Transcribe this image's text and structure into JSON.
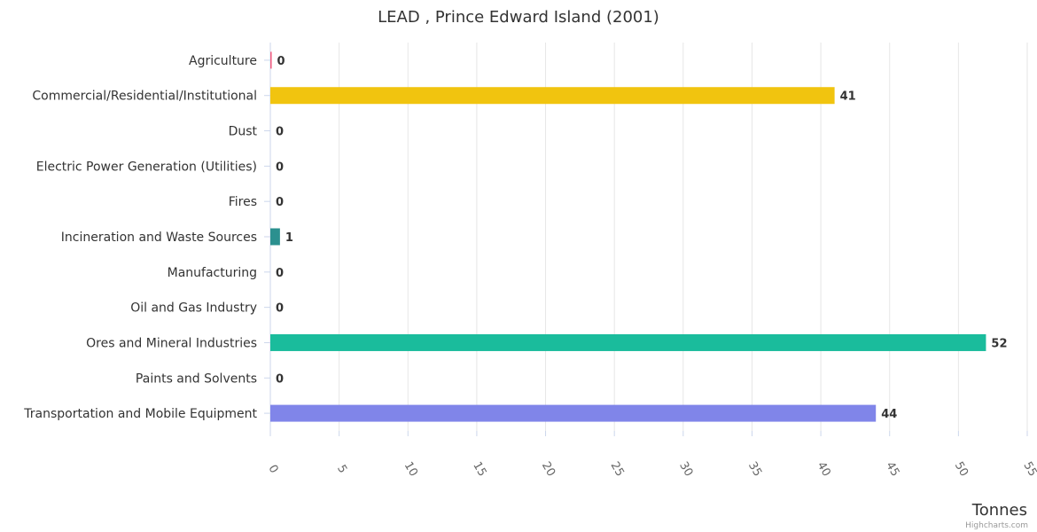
{
  "chart_data": {
    "type": "bar",
    "orientation": "horizontal",
    "title": "LEAD , Prince Edward Island (2001)",
    "categories": [
      "Agriculture",
      "Commercial/Residential/Institutional",
      "Dust",
      "Electric Power Generation (Utilities)",
      "Fires",
      "Incineration and Waste Sources",
      "Manufacturing",
      "Oil and Gas Industry",
      "Ores and Mineral Industries",
      "Paints and Solvents",
      "Transportation and Mobile Equipment"
    ],
    "values": [
      0.1,
      41,
      0,
      0,
      0,
      0.7,
      0,
      0,
      52,
      0,
      44
    ],
    "data_labels": [
      "0",
      "41",
      "0",
      "0",
      "0",
      "1",
      "0",
      "0",
      "52",
      "0",
      "44"
    ],
    "colors": [
      "#f15c80",
      "#f1c40f",
      "#2f7ed8",
      "#8085e9",
      "#f7a35c",
      "#2b908f",
      "#90ed7d",
      "#434348",
      "#1abc9c",
      "#e4d354",
      "#8085e9"
    ],
    "xlabel": "Tonnes",
    "ylabel": "",
    "xlim": [
      0,
      55
    ],
    "ticks": [
      0,
      5,
      10,
      15,
      20,
      25,
      30,
      35,
      40,
      45,
      50,
      55
    ],
    "grid": true,
    "legend": "none"
  },
  "credits": "Highcharts.com"
}
